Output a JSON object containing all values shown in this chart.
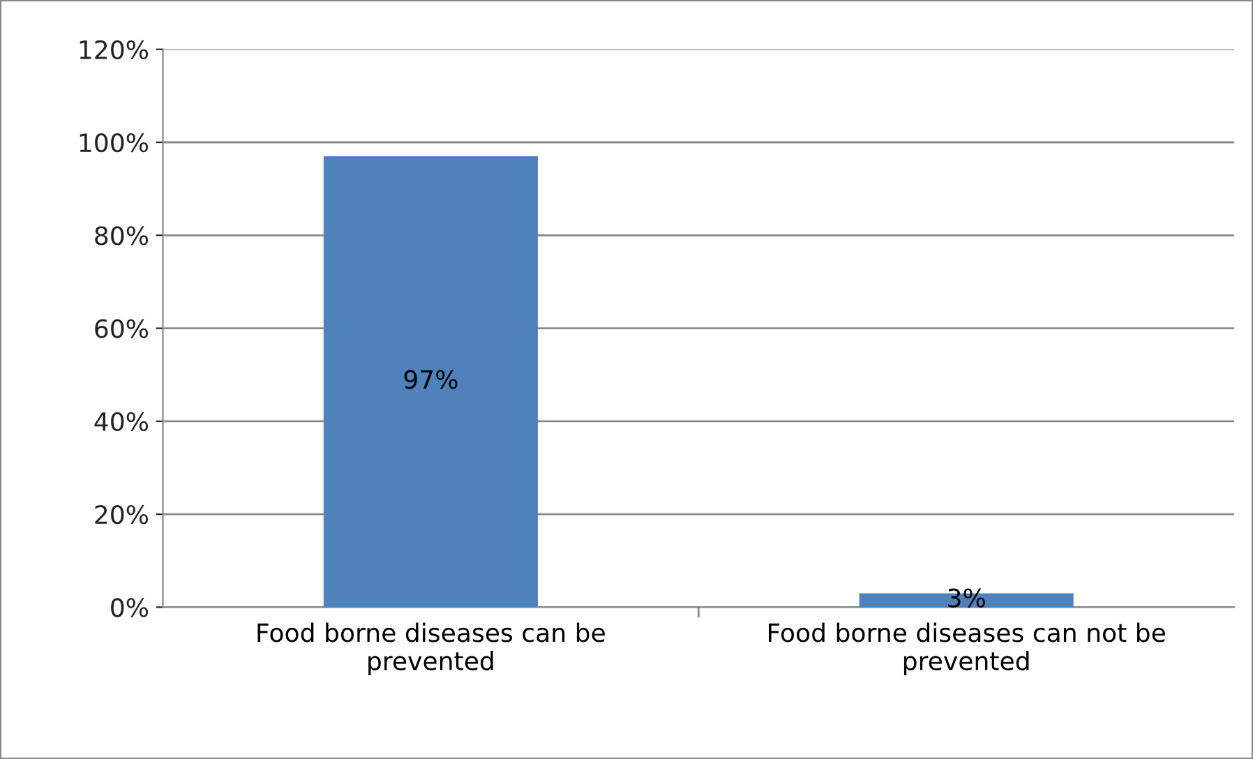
{
  "chart_data": {
    "type": "bar",
    "categories": [
      "Food borne diseases can be prevented",
      "Food borne diseases can not be prevented"
    ],
    "values": [
      97,
      3
    ],
    "color": "#4f81bd",
    "value_labels": [
      "97%",
      "3%"
    ],
    "ylim": [
      0,
      120
    ],
    "yticks": [
      {
        "value": 0,
        "label": "0%"
      },
      {
        "value": 20,
        "label": "20%"
      },
      {
        "value": 40,
        "label": "40%"
      },
      {
        "value": 60,
        "label": "60%"
      },
      {
        "value": 80,
        "label": "80%"
      },
      {
        "value": 100,
        "label": "100%"
      },
      {
        "value": 120,
        "label": "120%"
      }
    ],
    "grid": "y",
    "legend": false
  }
}
